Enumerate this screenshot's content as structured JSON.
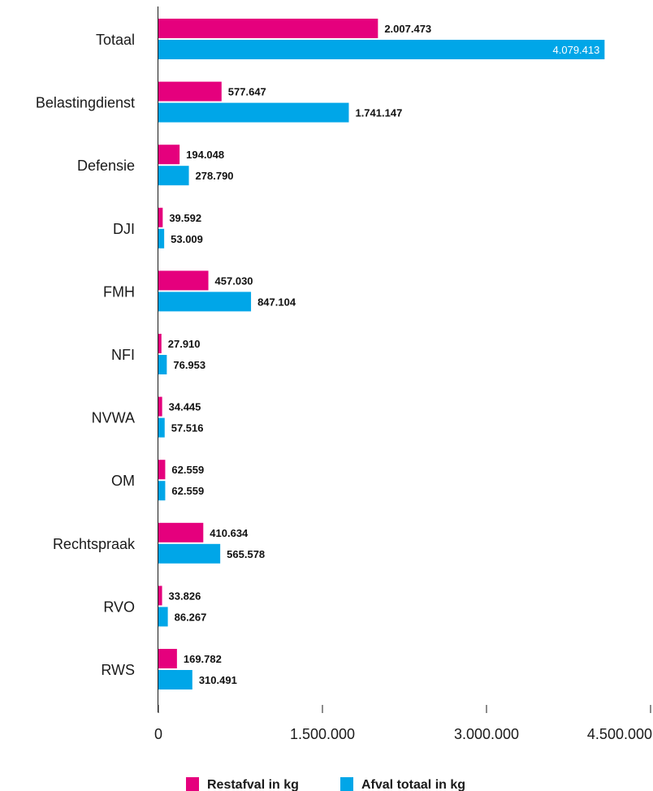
{
  "chart_data": {
    "type": "bar",
    "orientation": "horizontal",
    "categories": [
      "Totaal",
      "Belastingdienst",
      "Defensie",
      "DJI",
      "FMH",
      "NFI",
      "NVWA",
      "OM",
      "Rechtspraak",
      "RVO",
      "RWS"
    ],
    "series": [
      {
        "name": "Restafval in kg",
        "color": "#e5007d",
        "values": [
          2007473,
          577647,
          194048,
          39592,
          457030,
          27910,
          34445,
          62559,
          410634,
          33826,
          169782
        ],
        "labels": [
          "2.007.473",
          "577.647",
          "194.048",
          "39.592",
          "457.030",
          "27.910",
          "34.445",
          "62.559",
          "410.634",
          "33.826",
          "169.782"
        ]
      },
      {
        "name": "Afval totaal in kg",
        "color": "#00a6e8",
        "values": [
          4079413,
          1741147,
          278790,
          53009,
          847104,
          76953,
          57516,
          62559,
          565578,
          86267,
          310491
        ],
        "labels": [
          "4.079.413",
          "1.741.147",
          "278.790",
          "53.009",
          "847.104",
          "76.953",
          "57.516",
          "62.559",
          "565.578",
          "86.267",
          "310.491"
        ]
      }
    ],
    "xlim": [
      0,
      4500000
    ],
    "xticks": [
      0,
      1500000,
      3000000,
      4500000
    ],
    "xtick_labels": [
      "0",
      "1.500.000",
      "3.000.000",
      "4.500.000"
    ],
    "grid": false,
    "legend_position": "bottom-center"
  }
}
